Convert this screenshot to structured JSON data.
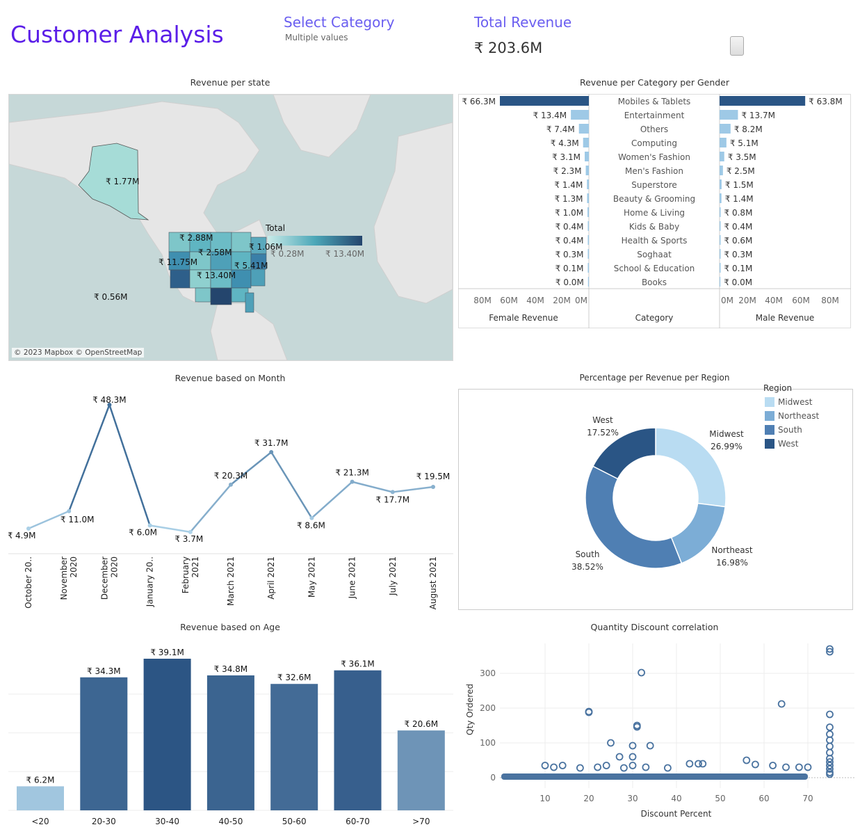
{
  "header": {
    "title": "Customer Analysis",
    "filter_label": "Select Category",
    "filter_value": "Multiple values",
    "kpi_label": "Total Revenue",
    "kpi_value": "₹ 203.6M",
    "device_icon": "tablet-icon"
  },
  "map": {
    "title": "Revenue per state",
    "credit": "© 2023 Mapbox © OpenStreetMap",
    "legend_title": "Total",
    "legend_min": "₹ 0.28M",
    "legend_max": "₹ 13.40M",
    "labels": [
      "₹ 1.77M",
      "₹ 2.88M",
      "₹ 2.58M",
      "₹ 1.06M",
      "₹ 11.75M",
      "₹ 5.41M",
      "₹ 13.40M",
      "₹ 0.56M"
    ],
    "colors": {
      "low": "#c9ebe8",
      "mid": "#4ca7b8",
      "high": "#24456d"
    }
  },
  "gender_chart": {
    "title": "Revenue per Category per Gender",
    "female_header": "Female Revenue",
    "category_header": "Category",
    "male_header": "Male Revenue",
    "axis_ticks_female": [
      "80M",
      "60M",
      "40M",
      "20M",
      "0M"
    ],
    "axis_ticks_male": [
      "0M",
      "20M",
      "40M",
      "60M",
      "80M"
    ]
  },
  "month_chart": {
    "title": "Revenue based on Month"
  },
  "donut_chart": {
    "title": "Percentage per Revenue per Region",
    "legend_title": "Region"
  },
  "age_chart": {
    "title": "Revenue based on Age"
  },
  "scatter_chart": {
    "title": "Quantity Discount correlation",
    "xlabel": "Discount Percent",
    "ylabel": "Qty Ordered"
  },
  "chart_data": [
    {
      "type": "bar",
      "title": "Revenue per Category per Gender",
      "categories": [
        "Mobiles & Tablets",
        "Entertainment",
        "Others",
        "Computing",
        "Women's Fashion",
        "Men's Fashion",
        "Superstore",
        "Beauty & Grooming",
        "Home & Living",
        "Kids & Baby",
        "Health & Sports",
        "Soghaat",
        "School & Education",
        "Books"
      ],
      "series": [
        {
          "name": "Female Revenue",
          "values": [
            66.3,
            13.4,
            7.4,
            4.3,
            3.1,
            2.3,
            1.4,
            1.3,
            1.0,
            0.4,
            0.4,
            0.3,
            0.1,
            0.0
          ],
          "labels": [
            "₹ 66.3M",
            "₹ 13.4M",
            "₹ 7.4M",
            "₹ 4.3M",
            "₹ 3.1M",
            "₹ 2.3M",
            "₹ 1.4M",
            "₹ 1.3M",
            "₹ 1.0M",
            "₹ 0.4M",
            "₹ 0.4M",
            "₹ 0.3M",
            "₹ 0.1M",
            "₹ 0.0M"
          ]
        },
        {
          "name": "Male Revenue",
          "values": [
            63.8,
            13.7,
            8.2,
            5.1,
            3.5,
            2.5,
            1.5,
            1.4,
            0.8,
            0.4,
            0.6,
            0.3,
            0.1,
            0.0
          ],
          "labels": [
            "₹ 63.8M",
            "₹ 13.7M",
            "₹ 8.2M",
            "₹ 5.1M",
            "₹ 3.5M",
            "₹ 2.5M",
            "₹ 1.5M",
            "₹ 1.4M",
            "₹ 0.8M",
            "₹ 0.4M",
            "₹ 0.6M",
            "₹ 0.3M",
            "₹ 0.1M",
            "₹ 0.0M"
          ]
        }
      ],
      "xlim": [
        0,
        80
      ]
    },
    {
      "type": "line",
      "title": "Revenue based on Month",
      "categories": [
        "October 20..",
        "November 2020",
        "December 2020",
        "January 20..",
        "February 2021",
        "March 2021",
        "April 2021",
        "May 2021",
        "June 2021",
        "July 2021",
        "August 2021"
      ],
      "values": [
        4.9,
        11.0,
        48.3,
        6.0,
        3.7,
        20.3,
        31.7,
        8.6,
        21.3,
        17.7,
        19.5
      ],
      "labels": [
        "₹ 4.9M",
        "₹ 11.0M",
        "₹ 48.3M",
        "₹ 6.0M",
        "₹ 3.7M",
        "₹ 20.3M",
        "₹ 31.7M",
        "₹ 8.6M",
        "₹ 21.3M",
        "₹ 17.7M",
        "₹ 19.5M"
      ],
      "ylim": [
        0,
        50
      ]
    },
    {
      "type": "pie",
      "title": "Percentage per Revenue per Region",
      "categories": [
        "Midwest",
        "Northeast",
        "South",
        "West"
      ],
      "values": [
        26.99,
        16.98,
        38.52,
        17.52
      ],
      "labels": [
        "26.99%",
        "16.98%",
        "38.52%",
        "17.52%"
      ],
      "colors": [
        "#b9dcf2",
        "#7cadd6",
        "#4f7fb3",
        "#2a5585"
      ],
      "legend": "top-right"
    },
    {
      "type": "bar",
      "title": "Revenue based on Age",
      "categories": [
        "<20",
        "20-30",
        "30-40",
        "40-50",
        "50-60",
        "60-70",
        ">70"
      ],
      "values": [
        6.2,
        34.3,
        39.1,
        34.8,
        32.6,
        36.1,
        20.6
      ],
      "labels": [
        "₹ 6.2M",
        "₹ 34.3M",
        "₹ 39.1M",
        "₹ 34.8M",
        "₹ 32.6M",
        "₹ 36.1M",
        "₹ 20.6M"
      ],
      "ylim": [
        0,
        40
      ]
    },
    {
      "type": "scatter",
      "title": "Quantity Discount correlation",
      "xlabel": "Discount Percent",
      "ylabel": "Qty Ordered",
      "xticks": [
        10,
        20,
        30,
        40,
        50,
        60,
        70
      ],
      "yticks": [
        0,
        100,
        200,
        300
      ],
      "xlim": [
        0,
        76
      ],
      "ylim": [
        -10,
        380
      ],
      "points": [
        [
          20,
          190
        ],
        [
          20,
          188
        ],
        [
          32,
          302
        ],
        [
          31,
          150
        ],
        [
          31,
          146
        ],
        [
          64,
          212
        ],
        [
          25,
          100
        ],
        [
          30,
          92
        ],
        [
          34,
          92
        ],
        [
          27,
          60
        ],
        [
          30,
          60
        ],
        [
          75,
          370
        ],
        [
          75,
          362
        ],
        [
          75,
          182
        ],
        [
          75,
          145
        ],
        [
          75,
          125
        ],
        [
          75,
          108
        ],
        [
          75,
          90
        ],
        [
          75,
          72
        ],
        [
          75,
          55
        ],
        [
          75,
          45
        ],
        [
          75,
          35
        ],
        [
          75,
          25
        ],
        [
          75,
          15
        ],
        [
          75,
          10
        ],
        [
          10,
          35
        ],
        [
          12,
          30
        ],
        [
          14,
          35
        ],
        [
          18,
          28
        ],
        [
          22,
          30
        ],
        [
          24,
          35
        ],
        [
          28,
          28
        ],
        [
          30,
          35
        ],
        [
          33,
          30
        ],
        [
          38,
          28
        ],
        [
          43,
          40
        ],
        [
          45,
          40
        ],
        [
          46,
          40
        ],
        [
          56,
          50
        ],
        [
          58,
          38
        ],
        [
          62,
          35
        ],
        [
          65,
          30
        ],
        [
          68,
          30
        ],
        [
          70,
          30
        ]
      ]
    }
  ]
}
